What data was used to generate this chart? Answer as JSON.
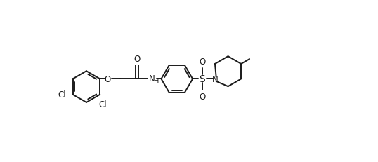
{
  "line_color": "#1a1a1a",
  "bg_color": "#ffffff",
  "lw": 1.4,
  "fs": 8.5,
  "fig_w": 5.38,
  "fig_h": 2.32,
  "dpi": 100,
  "xlim": [
    -0.3,
    10.5
  ],
  "ylim": [
    -2.6,
    2.8
  ],
  "ring_r": 0.52,
  "pip_r": 0.5,
  "double_off": 0.065,
  "double_shr": 0.1
}
